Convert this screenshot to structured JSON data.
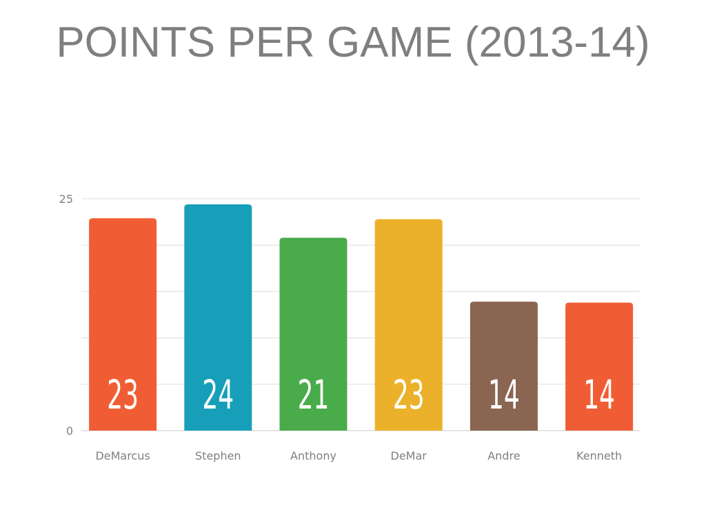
{
  "chart_data": {
    "type": "bar",
    "title": "POINTS PER GAME (2013-14)",
    "categories": [
      "DeMarcus",
      "Stephen",
      "Anthony",
      "DeMar",
      "Andre",
      "Kenneth"
    ],
    "values": [
      22.9,
      24.4,
      20.8,
      22.8,
      13.9,
      13.8
    ],
    "data_labels": [
      "23",
      "24",
      "21",
      "23",
      "14",
      "14"
    ],
    "y_tick_labels": [
      "0",
      "25"
    ],
    "ylim": [
      0,
      25
    ],
    "y_gridlines": [
      5,
      10,
      15,
      20,
      25
    ],
    "grid": true,
    "legend": "none",
    "colors": [
      "#f05d34",
      "#179fba",
      "#4aab4b",
      "#ebb12a",
      "#8a6552",
      "#f05d34"
    ],
    "axis_text_color": "#7f7f7f",
    "grid_color": "#dddddd",
    "data_label_color": "#ffffff"
  }
}
